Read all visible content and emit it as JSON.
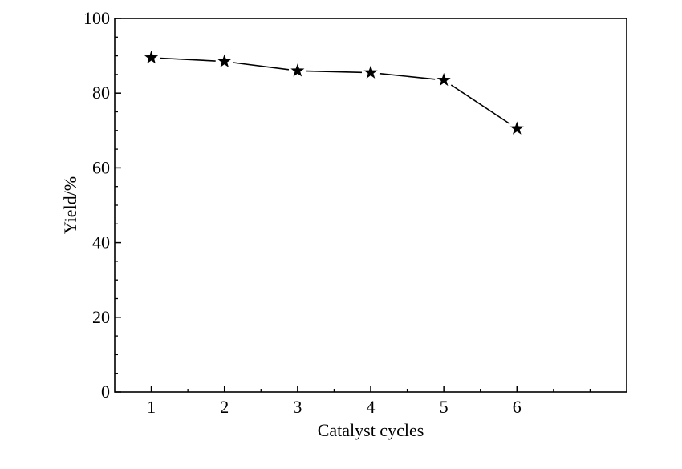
{
  "chart_data": {
    "type": "line",
    "title": "",
    "xlabel": "Catalyst cycles",
    "ylabel": "Yield/%",
    "x": [
      1,
      2,
      3,
      4,
      5,
      6
    ],
    "series": [
      {
        "values": [
          89.5,
          88.5,
          86.0,
          85.5,
          83.5,
          70.5
        ],
        "marker": "star",
        "color": "#000000"
      }
    ],
    "xlim": [
      0.5,
      7.5
    ],
    "ylim": [
      0,
      100
    ],
    "xticks": [
      1,
      2,
      3,
      4,
      5,
      6
    ],
    "xtick_labels": [
      "1",
      "2",
      "3",
      "4",
      "5",
      "6"
    ],
    "yticks": [
      0,
      20,
      40,
      60,
      80,
      100
    ],
    "ytick_labels": [
      "0",
      "20",
      "40",
      "60",
      "80",
      "100"
    ],
    "y_minor_step": 5,
    "x_minor_step": 0.5,
    "grid": false,
    "legend": "none"
  }
}
